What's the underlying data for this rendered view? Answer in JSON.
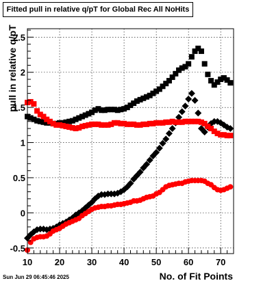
{
  "title": "Fitted pull in relative q/pT for Global Rec All NoHits",
  "datestamp": "Sun Jun 29 06:45:46 2025",
  "chart_data": {
    "type": "scatter",
    "title": "Fitted pull in relative q/pT for Global Rec All NoHits",
    "xlabel": "No. of Fit Points",
    "ylabel": "pull in relative q/pT",
    "xlim": [
      10,
      74
    ],
    "ylim": [
      -0.58,
      2.62
    ],
    "x_ticks": [
      10,
      20,
      30,
      40,
      50,
      60,
      70
    ],
    "y_ticks": [
      -0.5,
      0,
      0.5,
      1,
      1.5,
      2,
      2.5
    ],
    "x_tick_labels": [
      "10",
      "20",
      "30",
      "40",
      "50",
      "60",
      "70"
    ],
    "y_tick_labels": [
      "-0.5",
      "0",
      "0.5",
      "1",
      "1.5",
      "2",
      "2.5"
    ],
    "grid": true,
    "series": [
      {
        "marker": "square",
        "color": "#000000",
        "x": [
          10,
          11,
          12,
          13,
          14,
          15,
          16,
          17,
          18,
          19,
          20,
          21,
          22,
          23,
          24,
          25,
          26,
          27,
          28,
          29,
          30,
          31,
          32,
          33,
          34,
          35,
          36,
          37,
          38,
          39,
          40,
          41,
          42,
          43,
          44,
          45,
          46,
          47,
          48,
          49,
          50,
          51,
          52,
          53,
          54,
          55,
          56,
          57,
          58,
          59,
          60,
          61,
          62,
          63,
          64,
          65,
          66,
          67,
          68,
          69,
          70,
          71,
          72,
          73
        ],
        "y": [
          1.37,
          1.35,
          1.33,
          1.31,
          1.3,
          1.29,
          1.28,
          1.28,
          1.27,
          1.27,
          1.28,
          1.28,
          1.29,
          1.3,
          1.31,
          1.33,
          1.35,
          1.37,
          1.39,
          1.41,
          1.43,
          1.46,
          1.48,
          1.46,
          1.46,
          1.47,
          1.47,
          1.47,
          1.46,
          1.47,
          1.48,
          1.5,
          1.53,
          1.56,
          1.59,
          1.61,
          1.63,
          1.65,
          1.67,
          1.7,
          1.73,
          1.76,
          1.8,
          1.84,
          1.88,
          1.93,
          1.98,
          2.03,
          2.06,
          2.08,
          2.12,
          2.22,
          2.3,
          2.34,
          2.3,
          2.12,
          1.97,
          1.88,
          1.82,
          1.86,
          1.9,
          1.92,
          1.89,
          1.85
        ]
      },
      {
        "marker": "diamond",
        "color": "#000000",
        "x": [
          10,
          11,
          12,
          13,
          14,
          15,
          16,
          17,
          18,
          19,
          20,
          21,
          22,
          23,
          24,
          25,
          26,
          27,
          28,
          29,
          30,
          31,
          32,
          33,
          34,
          35,
          36,
          37,
          38,
          39,
          40,
          41,
          42,
          43,
          44,
          45,
          46,
          47,
          48,
          49,
          50,
          51,
          52,
          53,
          54,
          55,
          56,
          57,
          58,
          59,
          60,
          61,
          62,
          63,
          64,
          65,
          66,
          67,
          68,
          69,
          70,
          71,
          72,
          73
        ],
        "y": [
          -0.36,
          -0.31,
          -0.27,
          -0.24,
          -0.23,
          -0.23,
          -0.24,
          -0.23,
          -0.22,
          -0.2,
          -0.17,
          -0.15,
          -0.13,
          -0.1,
          -0.07,
          -0.03,
          0.0,
          0.03,
          0.07,
          0.11,
          0.15,
          0.2,
          0.24,
          0.26,
          0.26,
          0.27,
          0.27,
          0.27,
          0.28,
          0.3,
          0.33,
          0.37,
          0.42,
          0.48,
          0.53,
          0.58,
          0.64,
          0.69,
          0.75,
          0.81,
          0.86,
          0.92,
          0.99,
          1.05,
          1.13,
          1.2,
          1.28,
          1.36,
          1.44,
          1.52,
          1.62,
          1.7,
          1.6,
          1.42,
          1.2,
          1.15,
          1.22,
          1.27,
          1.3,
          1.3,
          1.28,
          1.25,
          1.22,
          1.2
        ]
      },
      {
        "marker": "square",
        "color": "#ff0000",
        "x": [
          10,
          11,
          12,
          13,
          14,
          15,
          16,
          17,
          18,
          19,
          20,
          21,
          22,
          23,
          24,
          25,
          26,
          27,
          28,
          29,
          30,
          31,
          32,
          33,
          34,
          35,
          36,
          37,
          38,
          39,
          40,
          41,
          42,
          43,
          44,
          45,
          46,
          47,
          48,
          49,
          50,
          51,
          52,
          53,
          54,
          55,
          56,
          57,
          58,
          59,
          60,
          61,
          62,
          63,
          64,
          65,
          66,
          67,
          68,
          69,
          70,
          71,
          72,
          73
        ],
        "y": [
          1.57,
          1.58,
          1.55,
          1.45,
          1.4,
          1.37,
          1.33,
          1.3,
          1.27,
          1.25,
          1.25,
          1.24,
          1.23,
          1.22,
          1.21,
          1.2,
          1.21,
          1.23,
          1.24,
          1.25,
          1.26,
          1.26,
          1.26,
          1.25,
          1.25,
          1.25,
          1.26,
          1.28,
          1.28,
          1.27,
          1.27,
          1.26,
          1.26,
          1.26,
          1.25,
          1.25,
          1.26,
          1.26,
          1.27,
          1.27,
          1.28,
          1.28,
          1.28,
          1.29,
          1.29,
          1.3,
          1.29,
          1.29,
          1.29,
          1.3,
          1.3,
          1.3,
          1.3,
          1.3,
          1.29,
          1.27,
          1.23,
          1.2,
          1.16,
          1.13,
          1.11,
          1.11,
          1.1,
          1.1
        ]
      },
      {
        "marker": "circle",
        "color": "#ff0000",
        "x": [
          10,
          11,
          12,
          13,
          14,
          15,
          16,
          17,
          18,
          19,
          20,
          21,
          22,
          23,
          24,
          25,
          26,
          27,
          28,
          29,
          30,
          31,
          32,
          33,
          34,
          35,
          36,
          37,
          38,
          39,
          40,
          41,
          42,
          43,
          44,
          45,
          46,
          47,
          48,
          49,
          50,
          51,
          52,
          53,
          54,
          55,
          56,
          57,
          58,
          59,
          60,
          61,
          62,
          63,
          64,
          65,
          66,
          67,
          68,
          69,
          70,
          71,
          72,
          73
        ],
        "y": [
          -0.53,
          -0.42,
          -0.37,
          -0.35,
          -0.34,
          -0.34,
          -0.33,
          -0.3,
          -0.26,
          -0.24,
          -0.22,
          -0.19,
          -0.16,
          -0.14,
          -0.12,
          -0.1,
          -0.08,
          -0.04,
          -0.01,
          0.02,
          0.05,
          0.07,
          0.08,
          0.09,
          0.09,
          0.1,
          0.1,
          0.11,
          0.12,
          0.12,
          0.13,
          0.14,
          0.15,
          0.17,
          0.17,
          0.18,
          0.2,
          0.22,
          0.23,
          0.24,
          0.27,
          0.29,
          0.33,
          0.37,
          0.39,
          0.4,
          0.41,
          0.42,
          0.42,
          0.44,
          0.45,
          0.46,
          0.46,
          0.46,
          0.46,
          0.45,
          0.42,
          0.4,
          0.36,
          0.33,
          0.32,
          0.33,
          0.35,
          0.37
        ]
      }
    ]
  }
}
